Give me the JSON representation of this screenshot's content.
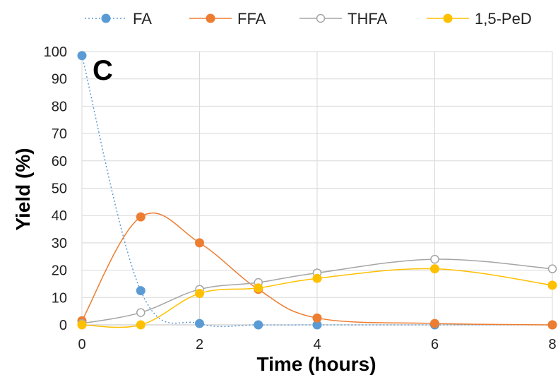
{
  "chart_data": {
    "type": "line",
    "panel_label": "C",
    "xlabel": "Time (hours)",
    "ylabel": "Yield (%)",
    "xlim": [
      0,
      8
    ],
    "ylim": [
      0,
      100
    ],
    "xticks": [
      0,
      2,
      4,
      6,
      8
    ],
    "yticks": [
      0,
      10,
      20,
      30,
      40,
      50,
      60,
      70,
      80,
      90,
      100
    ],
    "grid": true,
    "legend_position": "top",
    "x": [
      0,
      1,
      2,
      3,
      4,
      6,
      8
    ],
    "series": [
      {
        "name": "FA",
        "values": [
          98.5,
          12.5,
          0.5,
          0,
          0,
          0,
          0
        ],
        "color": "#5B9BD5",
        "line_style": "dotted",
        "marker": "filled-circle"
      },
      {
        "name": "FFA",
        "values": [
          1.5,
          39.5,
          30,
          13,
          2.5,
          0.5,
          0
        ],
        "color": "#ED7D31",
        "line_style": "solid",
        "marker": "filled-circle"
      },
      {
        "name": "THFA",
        "values": [
          0.5,
          4.5,
          13,
          15.5,
          19,
          24,
          20.5
        ],
        "color": "#A5A5A5",
        "line_style": "solid",
        "marker": "open-circle"
      },
      {
        "name": "1,5-PeD",
        "values": [
          0,
          0,
          11.5,
          13.5,
          17,
          20.5,
          14.5
        ],
        "color": "#FFC000",
        "line_style": "solid",
        "marker": "filled-circle"
      }
    ]
  }
}
